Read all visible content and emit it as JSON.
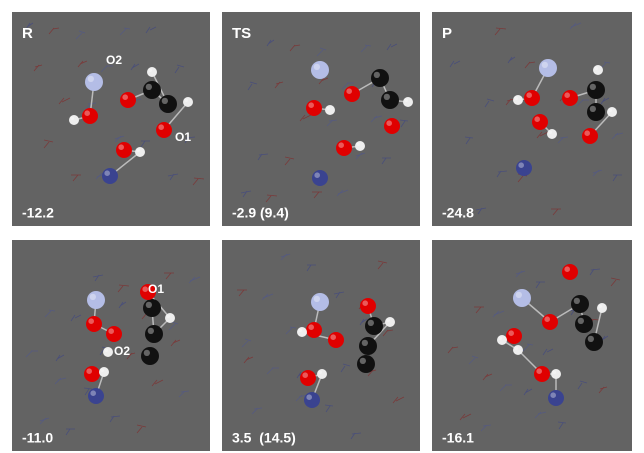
{
  "panels": [
    {
      "label": "R",
      "energy": "-12.2",
      "atom_labels": [
        "O2",
        "O1"
      ]
    },
    {
      "label": "TS",
      "energy": "-2.9 (9.4)"
    },
    {
      "label": "P",
      "energy": "-24.8"
    },
    {
      "energy": "-11.0",
      "atom_labels": [
        "O1",
        "O2"
      ]
    },
    {
      "energy": "3.5  (14.5)"
    },
    {
      "energy": "-16.1"
    }
  ]
}
